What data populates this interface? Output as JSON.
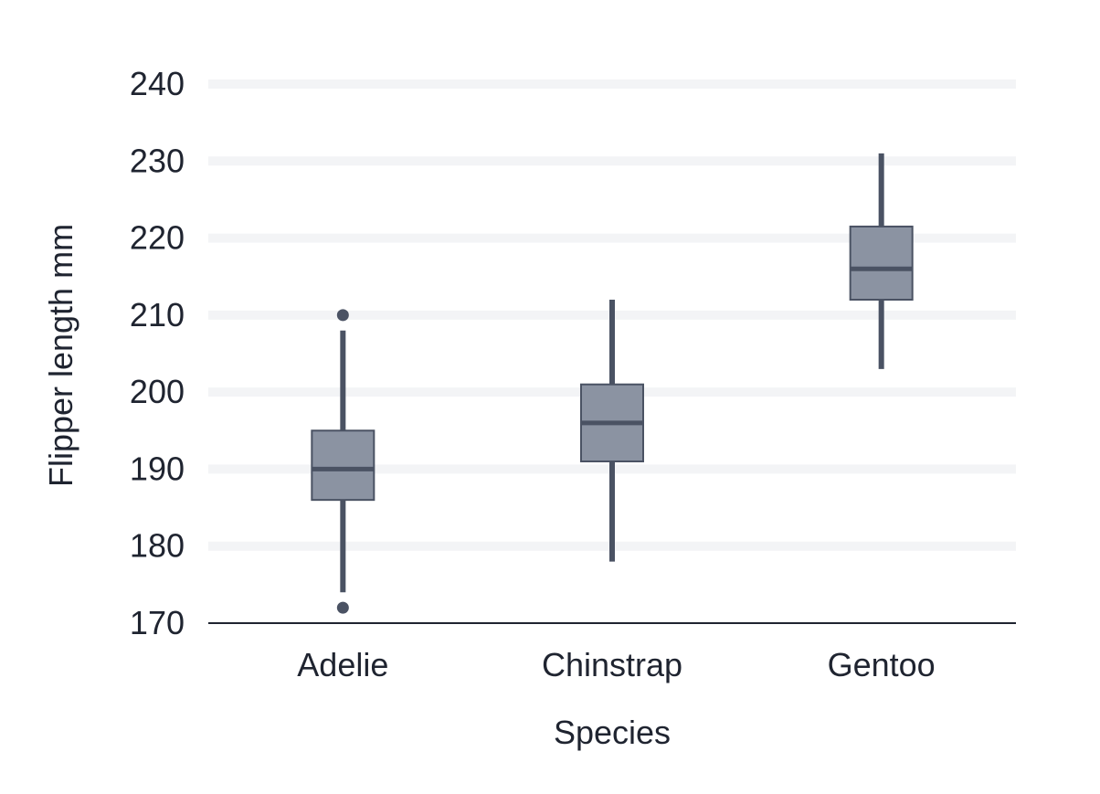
{
  "colors": {
    "box_fill": "#8b93a2",
    "box_stroke": "#4a5263",
    "whisker": "#4a5263",
    "median": "#4a5263",
    "outlier": "#4a5263",
    "grid": "#f3f4f6",
    "axis": "#1f2430",
    "text": "#1f2430"
  },
  "chart_data": {
    "type": "box",
    "title": "",
    "xlabel": "Species",
    "ylabel": "Flipper length mm",
    "ylim": [
      170,
      240
    ],
    "yticks": [
      170,
      180,
      190,
      200,
      210,
      220,
      230,
      240
    ],
    "grid": true,
    "categories": [
      "Adelie",
      "Chinstrap",
      "Gentoo"
    ],
    "boxes": [
      {
        "category": "Adelie",
        "whisker_low": 174,
        "q1": 186,
        "median": 190,
        "q3": 195,
        "whisker_high": 208,
        "outliers": [
          172,
          210
        ]
      },
      {
        "category": "Chinstrap",
        "whisker_low": 178,
        "q1": 191,
        "median": 196,
        "q3": 201,
        "whisker_high": 212,
        "outliers": []
      },
      {
        "category": "Gentoo",
        "whisker_low": 203,
        "q1": 212,
        "median": 216,
        "q3": 221.5,
        "whisker_high": 231,
        "outliers": []
      }
    ]
  }
}
